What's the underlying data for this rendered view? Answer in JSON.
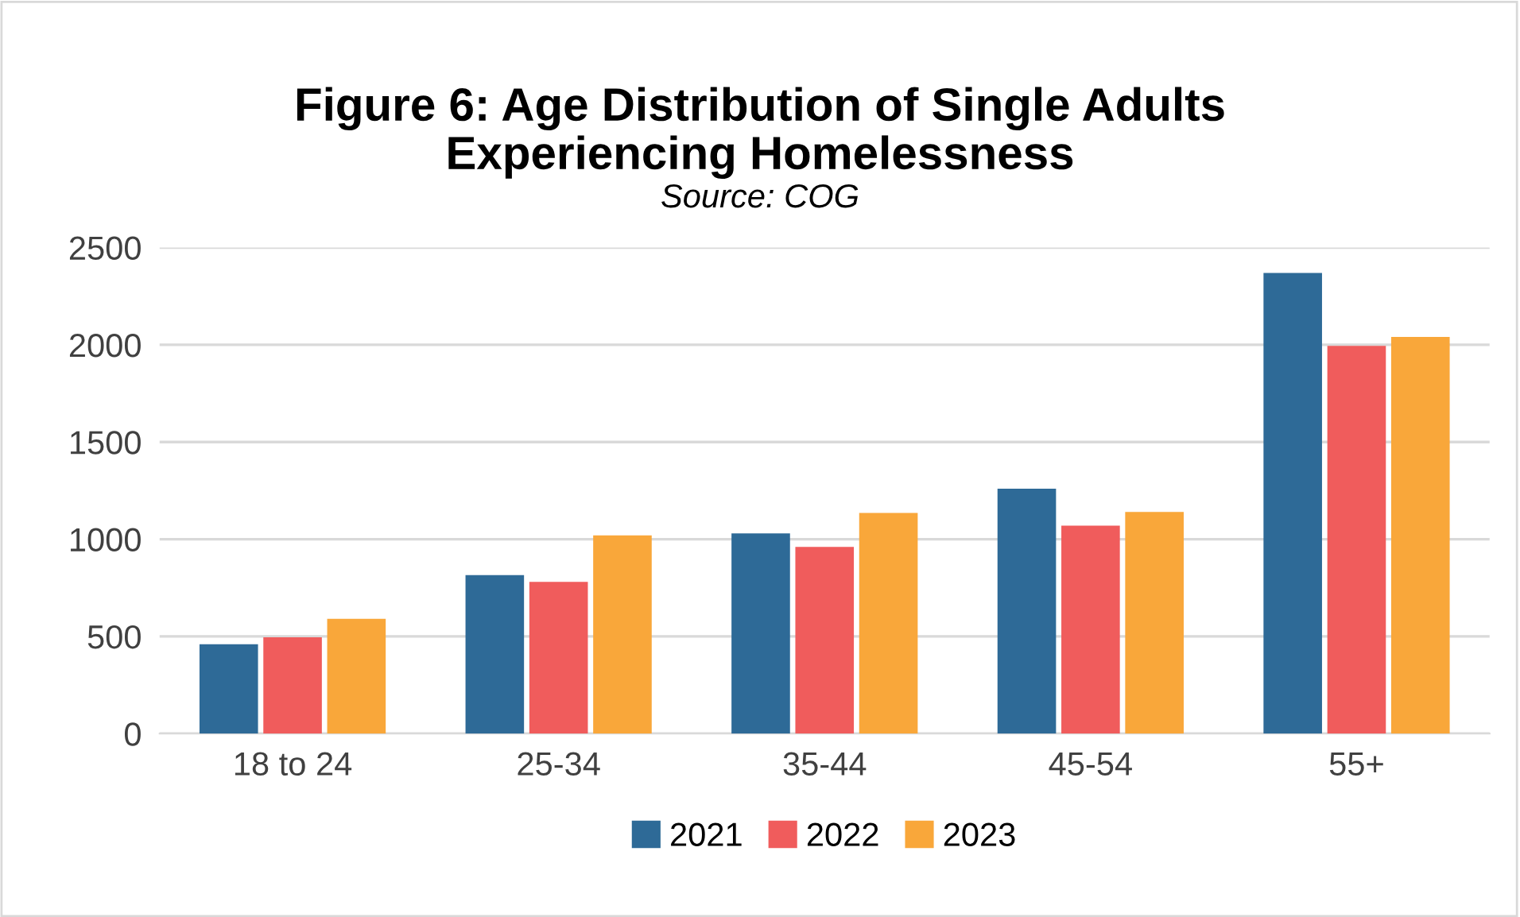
{
  "chart_data": {
    "type": "bar",
    "title": "Figure 6: Age Distribution of Single Adults\nExperiencing Homelessness",
    "subtitle": "Source: COG",
    "categories": [
      "18 to 24",
      "25-34",
      "35-44",
      "45-54",
      "55+"
    ],
    "series": [
      {
        "name": "2021",
        "color": "#2e6a97",
        "values": [
          460,
          815,
          1030,
          1260,
          2370
        ]
      },
      {
        "name": "2022",
        "color": "#f05c5c",
        "values": [
          495,
          780,
          960,
          1070,
          1995
        ]
      },
      {
        "name": "2023",
        "color": "#f9a73a",
        "values": [
          590,
          1020,
          1135,
          1140,
          2040
        ]
      }
    ],
    "ylim": [
      0,
      2500
    ],
    "yticks": [
      0,
      500,
      1000,
      1500,
      2000,
      2500
    ],
    "grid": "y",
    "legend": "bottom"
  }
}
